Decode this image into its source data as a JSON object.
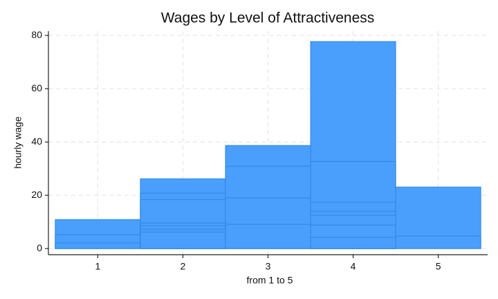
{
  "chart_data": {
    "type": "bar",
    "title": "Wages by Level of Attractiveness",
    "x_label": "from 1 to 5",
    "y_label": "hourly wage",
    "x": [
      1,
      1,
      1,
      2,
      2,
      2,
      2,
      2,
      2,
      2,
      3,
      3,
      3,
      3,
      4,
      4,
      4,
      4,
      4,
      4,
      4,
      5,
      5
    ],
    "values": [
      10.9,
      5.2,
      2.1,
      26.2,
      20.8,
      18.4,
      9.6,
      8.6,
      7.3,
      6.2,
      38.7,
      30.9,
      19.0,
      9.1,
      77.7,
      32.7,
      17.4,
      14.0,
      12.5,
      8.8,
      4.2,
      23.1,
      4.7
    ],
    "color": "#4a9efc",
    "xlim": [
      0.42,
      5.58
    ],
    "xticks": [
      1,
      2,
      3,
      4,
      5
    ],
    "ylim": [
      -2.3,
      81.6
    ],
    "yticks": [
      0,
      20,
      40,
      60,
      80
    ],
    "grid": true
  }
}
